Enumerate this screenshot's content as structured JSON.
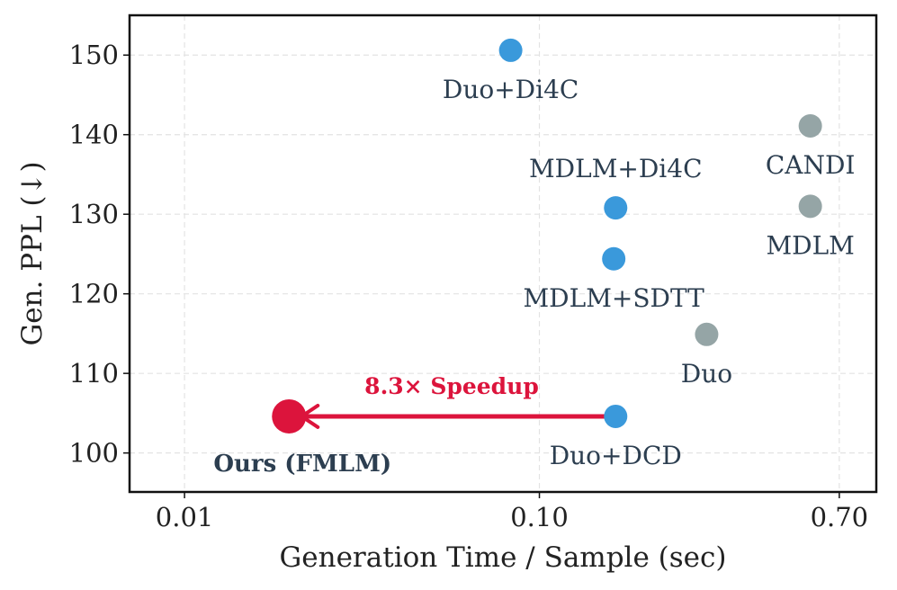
{
  "chart_data": {
    "type": "scatter",
    "xlabel": "Generation Time / Sample (sec)",
    "ylabel": "Gen. PPL (↓)",
    "xscale": "log",
    "xlim": [
      0.007,
      0.89
    ],
    "ylim": [
      95.1,
      155.0
    ],
    "xticks": [
      0.01,
      0.1,
      0.7
    ],
    "xtick_labels": [
      "0.01",
      "0.10",
      "0.70"
    ],
    "yticks": [
      100,
      110,
      120,
      130,
      140,
      150
    ],
    "ytick_labels": [
      "100",
      "110",
      "120",
      "130",
      "140",
      "150"
    ],
    "grid": true,
    "points": [
      {
        "label": "Duo+Di4C",
        "x": 0.083,
        "y": 150.6,
        "color": "#3a99db"
      },
      {
        "label": "CANDI",
        "x": 0.58,
        "y": 141.1,
        "color": "#95a5a6"
      },
      {
        "label": "MDLM",
        "x": 0.58,
        "y": 131.0,
        "color": "#95a5a6"
      },
      {
        "label": "MDLM+Di4C",
        "x": 0.164,
        "y": 130.8,
        "color": "#3a99db"
      },
      {
        "label": "MDLM+SDTT",
        "x": 0.162,
        "y": 124.4,
        "color": "#3a99db"
      },
      {
        "label": "Duo",
        "x": 0.296,
        "y": 114.9,
        "color": "#95a5a6"
      },
      {
        "label": "Duo+DCD",
        "x": 0.164,
        "y": 104.6,
        "color": "#3a99db"
      },
      {
        "label": "Ours (FMLM)",
        "x": 0.0197,
        "y": 104.6,
        "color": "#dc143c",
        "highlight": true
      }
    ],
    "annotation": {
      "text": "8.3× Speedup",
      "from": "Duo+DCD",
      "to": "Ours (FMLM)",
      "color": "#dc143c"
    }
  }
}
